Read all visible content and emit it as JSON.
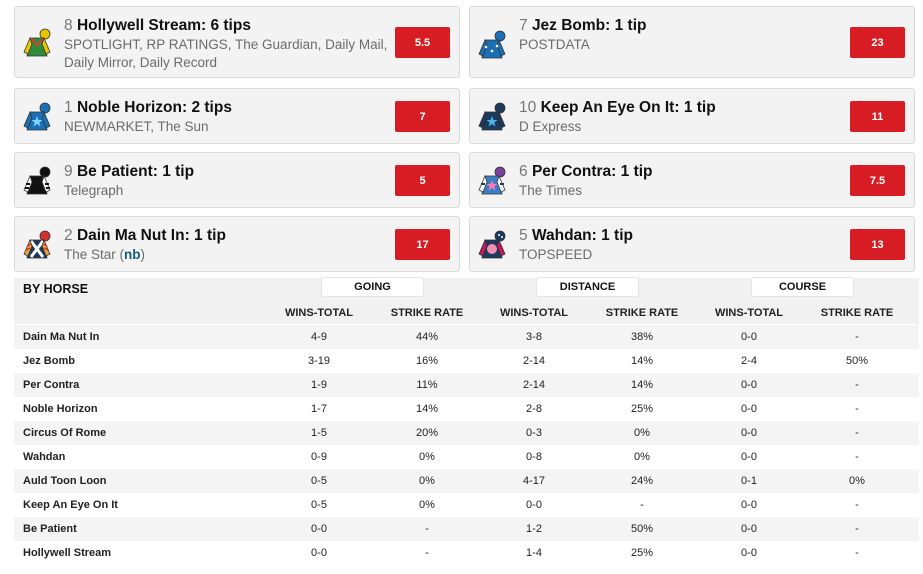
{
  "tips": [
    {
      "num": "8",
      "name": "Hollywell Stream: 6 tips",
      "sources": "SPOTLIGHT, RP RATINGS, The Guardian, Daily Mail, Daily Mirror, Daily Record",
      "odds": "5.5",
      "silk": "hollywell"
    },
    {
      "num": "7",
      "name": "Jez Bomb: 1 tip",
      "sources": "POSTDATA",
      "odds": "23",
      "silk": "jez"
    },
    {
      "num": "1",
      "name": "Noble Horizon: 2 tips",
      "sources": "NEWMARKET, The Sun",
      "odds": "7",
      "silk": "noble"
    },
    {
      "num": "10",
      "name": "Keep An Eye On It: 1 tip",
      "sources": "D Express",
      "odds": "11",
      "silk": "keep"
    },
    {
      "num": "9",
      "name": "Be Patient: 1 tip",
      "sources": "Telegraph",
      "odds": "5",
      "silk": "patient"
    },
    {
      "num": "6",
      "name": "Per Contra: 1 tip",
      "sources": "The Times",
      "odds": "7.5",
      "silk": "contra"
    },
    {
      "num": "2",
      "name": "Dain Ma Nut In: 1 tip",
      "sources": "The Star",
      "sources_extra": "nb",
      "odds": "17",
      "silk": "dain"
    },
    {
      "num": "5",
      "name": "Wahdan: 1 tip",
      "sources": "TOPSPEED",
      "odds": "13",
      "silk": "wahdan"
    }
  ],
  "stats": {
    "title": "BY HORSE",
    "groups": [
      "GOING",
      "DISTANCE",
      "COURSE"
    ],
    "columns": [
      "WINS-TOTAL",
      "STRIKE RATE",
      "WINS-TOTAL",
      "STRIKE RATE",
      "WINS-TOTAL",
      "STRIKE RATE"
    ],
    "rows": [
      {
        "name": "Dain Ma Nut In",
        "values": [
          "4-9",
          "44%",
          "3-8",
          "38%",
          "0-0",
          "-"
        ]
      },
      {
        "name": "Jez Bomb",
        "values": [
          "3-19",
          "16%",
          "2-14",
          "14%",
          "2-4",
          "50%"
        ]
      },
      {
        "name": "Per Contra",
        "values": [
          "1-9",
          "11%",
          "2-14",
          "14%",
          "0-0",
          "-"
        ]
      },
      {
        "name": "Noble Horizon",
        "values": [
          "1-7",
          "14%",
          "2-8",
          "25%",
          "0-0",
          "-"
        ]
      },
      {
        "name": "Circus Of Rome",
        "values": [
          "1-5",
          "20%",
          "0-3",
          "0%",
          "0-0",
          "-"
        ]
      },
      {
        "name": "Wahdan",
        "values": [
          "0-9",
          "0%",
          "0-8",
          "0%",
          "0-0",
          "-"
        ]
      },
      {
        "name": "Auld Toon Loon",
        "values": [
          "0-5",
          "0%",
          "4-17",
          "24%",
          "0-1",
          "0%"
        ]
      },
      {
        "name": "Keep An Eye On It",
        "values": [
          "0-5",
          "0%",
          "0-0",
          "-",
          "0-0",
          "-"
        ]
      },
      {
        "name": "Be Patient",
        "values": [
          "0-0",
          "-",
          "1-2",
          "50%",
          "0-0",
          "-"
        ]
      },
      {
        "name": "Hollywell Stream",
        "values": [
          "0-0",
          "-",
          "1-4",
          "25%",
          "0-0",
          "-"
        ]
      }
    ]
  },
  "colors": {
    "accent": "#d71d23",
    "nb": "#14607e"
  }
}
